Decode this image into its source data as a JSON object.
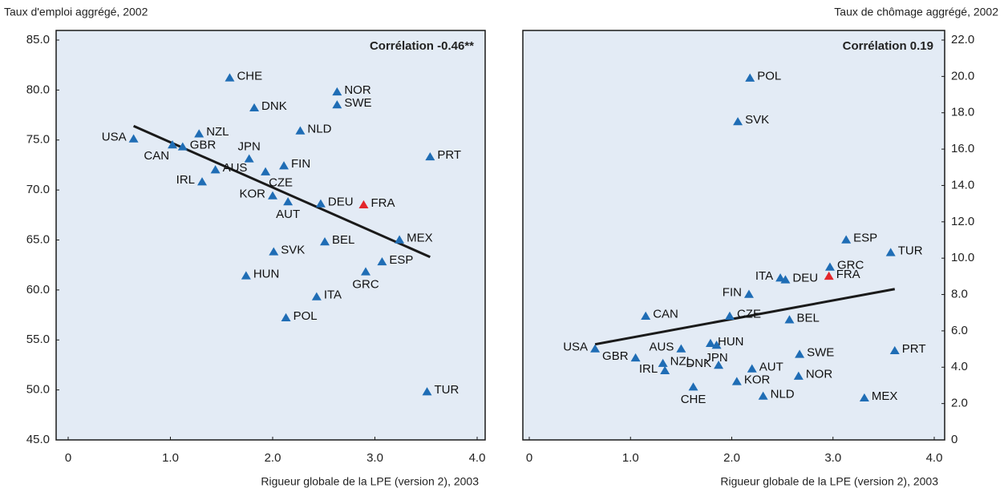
{
  "chart_data": [
    {
      "type": "scatter",
      "title": "Taux d'emploi aggrégé, 2002",
      "xlabel": "Rigueur globale de la LPE (version 2), 2003",
      "annotation": "Corrélation -0.46**",
      "y_axis_side": "left",
      "xlim": [
        0,
        4
      ],
      "xticks": [
        0,
        {
          "value": 1,
          "label": "1.0"
        },
        {
          "value": 2,
          "label": "2.0"
        },
        {
          "value": 3,
          "label": "3.0"
        },
        {
          "value": 4,
          "label": "4.0"
        }
      ],
      "ylim": [
        45,
        85
      ],
      "yticks": [
        {
          "value": 45,
          "label": "45.0"
        },
        {
          "value": 50,
          "label": "50.0"
        },
        {
          "value": 55,
          "label": "55.0"
        },
        {
          "value": 60,
          "label": "60.0"
        },
        {
          "value": 65,
          "label": "65.0"
        },
        {
          "value": 70,
          "label": "70.0"
        },
        {
          "value": 75,
          "label": "75.0"
        },
        {
          "value": 80,
          "label": "80.0"
        },
        {
          "value": 85,
          "label": "85.0"
        }
      ],
      "labels": [
        "CHE",
        "NOR",
        "SWE",
        "DNK",
        "NZL",
        "NLD",
        "USA",
        "CAN",
        "GBR",
        "JPN",
        "PRT",
        "FIN",
        "IRL",
        "AUS",
        "CZE",
        "KOR",
        "AUT",
        "DEU",
        "FRA",
        "BEL",
        "MEX",
        "SVK",
        "ESP",
        "GRC",
        "HUN",
        "ITA",
        "POL",
        "TUR"
      ],
      "x": [
        1.58,
        2.63,
        2.63,
        1.82,
        1.28,
        2.27,
        0.64,
        1.02,
        1.12,
        1.77,
        3.54,
        2.11,
        1.31,
        1.44,
        1.93,
        2.0,
        2.15,
        2.47,
        2.89,
        2.51,
        3.24,
        2.01,
        3.07,
        2.91,
        1.74,
        2.43,
        2.13,
        3.51
      ],
      "y": [
        81.2,
        79.8,
        78.5,
        78.2,
        75.6,
        75.9,
        75.1,
        74.5,
        74.3,
        73.1,
        73.3,
        72.4,
        70.8,
        72.0,
        71.8,
        69.4,
        68.8,
        68.6,
        68.5,
        64.8,
        65.0,
        63.8,
        62.8,
        61.8,
        61.4,
        59.3,
        57.2,
        49.8
      ],
      "colors": [
        "#1f6db5",
        "#1f6db5",
        "#1f6db5",
        "#1f6db5",
        "#1f6db5",
        "#1f6db5",
        "#1f6db5",
        "#1f6db5",
        "#1f6db5",
        "#1f6db5",
        "#1f6db5",
        "#1f6db5",
        "#1f6db5",
        "#1f6db5",
        "#1f6db5",
        "#1f6db5",
        "#1f6db5",
        "#1f6db5",
        "#e3262b",
        "#1f6db5",
        "#1f6db5",
        "#1f6db5",
        "#1f6db5",
        "#1f6db5",
        "#1f6db5",
        "#1f6db5",
        "#1f6db5",
        "#1f6db5"
      ],
      "trendline": {
        "x": [
          0.64,
          3.54
        ],
        "y": [
          76.4,
          63.3
        ],
        "color": "#1a1a1a"
      }
    },
    {
      "type": "scatter",
      "title": "Taux de chômage aggrégé, 2002",
      "xlabel": "Rigueur globale de la LPE (version 2), 2003",
      "annotation": "Corrélation 0.19",
      "y_axis_side": "right",
      "xlim": [
        0,
        4
      ],
      "xticks": [
        0,
        {
          "value": 1,
          "label": "1.0"
        },
        {
          "value": 2,
          "label": "2.0"
        },
        {
          "value": 3,
          "label": "3.0"
        },
        {
          "value": 4,
          "label": "4.0"
        }
      ],
      "ylim": [
        0,
        22
      ],
      "yticks": [
        0,
        {
          "value": 2,
          "label": "2.0"
        },
        {
          "value": 4,
          "label": "4.0"
        },
        {
          "value": 6,
          "label": "6.0"
        },
        {
          "value": 8,
          "label": "8.0"
        },
        {
          "value": 10,
          "label": "10.0"
        },
        {
          "value": 12,
          "label": "12.0"
        },
        {
          "value": 14,
          "label": "14.0"
        },
        {
          "value": 16,
          "label": "16.0"
        },
        {
          "value": 18,
          "label": "18.0"
        },
        {
          "value": 20,
          "label": "20.0"
        },
        {
          "value": 22,
          "label": "22.0"
        }
      ],
      "labels": [
        "POL",
        "SVK",
        "ESP",
        "TUR",
        "GRC",
        "ITA",
        "DEU",
        "FRA",
        "FIN",
        "CAN",
        "CZE",
        "BEL",
        "USA",
        "AUS",
        "HUN",
        "JPN",
        "GBR",
        "NZL",
        "SWE",
        "PRT",
        "AUT",
        "DNK",
        "IRL",
        "NOR",
        "KOR",
        "CHE",
        "NLD",
        "MEX"
      ],
      "x": [
        2.18,
        2.06,
        3.13,
        3.57,
        2.97,
        2.48,
        2.53,
        2.96,
        2.17,
        1.15,
        1.98,
        2.57,
        0.65,
        1.5,
        1.79,
        1.85,
        1.05,
        1.32,
        2.67,
        3.61,
        2.2,
        1.87,
        1.34,
        2.66,
        2.05,
        1.62,
        2.31,
        3.31
      ],
      "y": [
        19.9,
        17.5,
        11.0,
        10.3,
        9.5,
        8.9,
        8.8,
        9.0,
        8.0,
        6.8,
        6.8,
        6.6,
        5.0,
        5.0,
        5.3,
        5.2,
        4.5,
        4.2,
        4.7,
        4.9,
        3.9,
        4.1,
        3.8,
        3.5,
        3.2,
        2.9,
        2.4,
        2.3
      ],
      "colors": [
        "#1f6db5",
        "#1f6db5",
        "#1f6db5",
        "#1f6db5",
        "#1f6db5",
        "#1f6db5",
        "#1f6db5",
        "#e3262b",
        "#1f6db5",
        "#1f6db5",
        "#1f6db5",
        "#1f6db5",
        "#1f6db5",
        "#1f6db5",
        "#1f6db5",
        "#1f6db5",
        "#1f6db5",
        "#1f6db5",
        "#1f6db5",
        "#1f6db5",
        "#1f6db5",
        "#1f6db5",
        "#1f6db5",
        "#1f6db5",
        "#1f6db5",
        "#1f6db5",
        "#1f6db5",
        "#1f6db5"
      ],
      "trendline": {
        "x": [
          0.65,
          3.61
        ],
        "y": [
          5.26,
          8.3
        ],
        "color": "#1a1a1a"
      }
    }
  ]
}
